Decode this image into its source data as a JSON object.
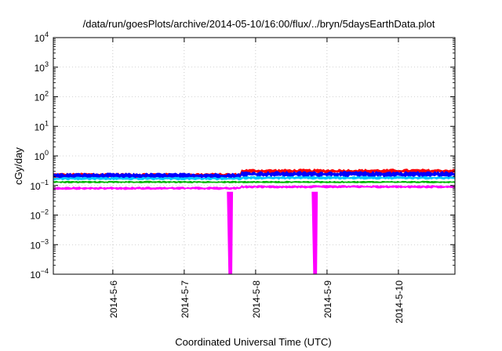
{
  "chart_data": {
    "type": "area",
    "title": "/data/run/goesPlots/archive/2014-05-10/16:00/flux/../bryn/5daysEarthData.plot",
    "xlabel": "Coordinated Universal Time (UTC)",
    "ylabel": "cGy/day",
    "yscale": "log",
    "ylim": [
      0.0001,
      10000
    ],
    "y_tick_exponents": [
      -4,
      -3,
      -2,
      -1,
      0,
      1,
      2,
      3,
      4
    ],
    "y_tick_base": "10",
    "x_range_days": [
      "2014-05-05T04:00",
      "2014-05-10T19:00"
    ],
    "x_ticks": [
      {
        "date": "2014-05-06",
        "label": "2014-5-6"
      },
      {
        "date": "2014-05-07",
        "label": "2014-5-7"
      },
      {
        "date": "2014-05-08",
        "label": "2014-5-8"
      },
      {
        "date": "2014-05-09",
        "label": "2014-5-9"
      },
      {
        "date": "2014-05-10",
        "label": "2014-5-10"
      }
    ],
    "grid": true,
    "legend": "none",
    "series": [
      {
        "color": "#ff0000",
        "level_before": 0.22,
        "level_after": 0.3,
        "spread": 0.12
      },
      {
        "color": "#0000ff",
        "level_before": 0.21,
        "level_after": 0.24,
        "spread": 0.15
      },
      {
        "color": "#00c8ff",
        "level_before": 0.17,
        "level_after": 0.18,
        "spread": 0.08
      },
      {
        "color": "#00b400",
        "level_before": 0.13,
        "level_after": 0.13,
        "spread": 0.05
      },
      {
        "color": "#ff00ff",
        "level_before": 0.08,
        "level_after": 0.09,
        "spread": 0.07
      }
    ],
    "dropouts": [
      {
        "series_color": "#ff00ff",
        "date": "2014-05-07T15:30",
        "min": 0.0001
      },
      {
        "series_color": "#ff00ff",
        "date": "2014-05-08T20:00",
        "min": 0.0001
      }
    ],
    "step_change_date": "2014-05-07T19:00"
  }
}
